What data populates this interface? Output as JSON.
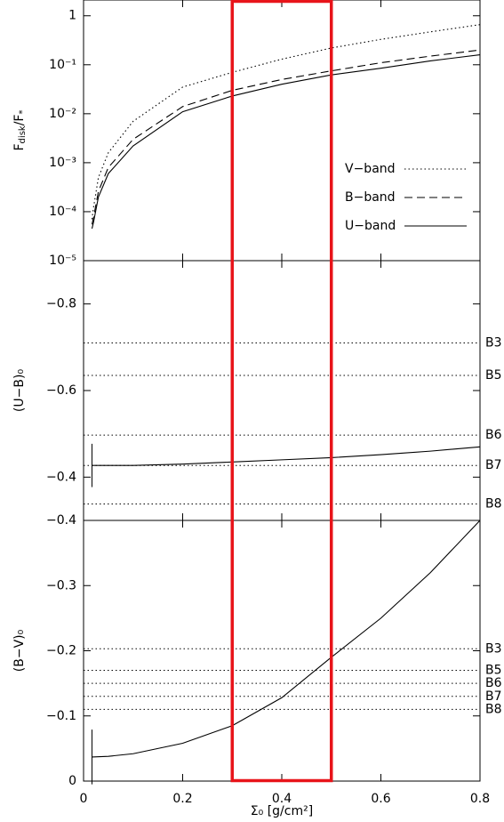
{
  "chart_data": [
    {
      "type": "line",
      "ylabel_parts": [
        "F",
        "disk",
        "/F",
        "*"
      ],
      "log_y": true,
      "xlim": [
        0,
        0.8
      ],
      "xticks": [
        0,
        0.2,
        0.4,
        0.6,
        0.8
      ],
      "ylim": [
        1e-05,
        2.1
      ],
      "yticks": [
        1,
        {
          "value": 0.1,
          "label": "10⁻¹"
        },
        {
          "value": 0.01,
          "label": "10⁻²"
        },
        {
          "value": 0.001,
          "label": "10⁻³"
        },
        {
          "value": 0.0001,
          "label": "10⁻⁴"
        },
        {
          "value": 1e-05,
          "label": "10⁻⁵"
        }
      ],
      "legend": "right",
      "x": [
        0.017,
        0.02,
        0.03,
        0.05,
        0.1,
        0.2,
        0.3,
        0.4,
        0.5,
        0.6,
        0.7,
        0.8
      ],
      "series": [
        {
          "name": "V−band",
          "color": "#000",
          "dash": "dotted",
          "values": [
            7e-05,
            0.00012,
            0.0005,
            0.0016,
            0.007,
            0.035,
            0.07,
            0.13,
            0.22,
            0.33,
            0.47,
            0.66
          ]
        },
        {
          "name": "B−band",
          "color": "#000",
          "dash": "dashed",
          "values": [
            5.5e-05,
            7.5e-05,
            0.00026,
            0.0008,
            0.003,
            0.014,
            0.03,
            0.05,
            0.075,
            0.11,
            0.15,
            0.2
          ]
        },
        {
          "name": "U−band",
          "color": "#000",
          "dash": "solid",
          "values": [
            4.5e-05,
            6e-05,
            0.0002,
            0.0006,
            0.0022,
            0.011,
            0.023,
            0.04,
            0.062,
            0.085,
            0.12,
            0.16
          ]
        }
      ]
    },
    {
      "type": "line",
      "ylabel": "(U−B)₀",
      "xlim": [
        0,
        0.8
      ],
      "xticks": [
        0,
        0.2,
        0.4,
        0.6,
        0.8
      ],
      "ylim": [
        -0.3,
        -0.9
      ],
      "yticks": [
        {
          "value": -0.8,
          "label": "−0.8"
        },
        {
          "value": -0.6,
          "label": "−0.6"
        },
        {
          "value": -0.4,
          "label": "−0.4"
        }
      ],
      "reference_lines": [
        {
          "label": "B3",
          "value": -0.71
        },
        {
          "label": "B5",
          "value": -0.635
        },
        {
          "label": "B6",
          "value": -0.497
        },
        {
          "label": "B7",
          "value": -0.427
        },
        {
          "label": "B8",
          "value": -0.338
        }
      ],
      "error_bar": {
        "x": 0.017,
        "value": -0.427,
        "error": 0.05
      },
      "x": [
        0.017,
        0.1,
        0.2,
        0.3,
        0.4,
        0.5,
        0.6,
        0.7,
        0.8
      ],
      "series": [
        {
          "color": "#000",
          "dash": "solid",
          "values": [
            -0.427,
            -0.427,
            -0.43,
            -0.435,
            -0.44,
            -0.445,
            -0.452,
            -0.46,
            -0.47
          ]
        }
      ]
    },
    {
      "type": "line",
      "ylabel": "(B−V)₀",
      "xlabel": "Σ₀ [g/cm²]",
      "xlim": [
        0,
        0.8
      ],
      "xticks": [
        0,
        0.2,
        0.4,
        0.6,
        0.8
      ],
      "ylim": [
        0,
        -0.4
      ],
      "yticks": [
        0,
        {
          "value": -0.1,
          "label": "−0.1"
        },
        {
          "value": -0.2,
          "label": "−0.2"
        },
        {
          "value": -0.3,
          "label": "−0.3"
        },
        {
          "value": -0.4,
          "label": "−0.4"
        }
      ],
      "reference_lines": [
        {
          "label": "B3",
          "value": -0.203
        },
        {
          "label": "B5",
          "value": -0.17
        },
        {
          "label": "B6",
          "value": -0.15
        },
        {
          "label": "B7",
          "value": -0.13
        },
        {
          "label": "B8",
          "value": -0.11
        }
      ],
      "error_bar": {
        "x": 0.017,
        "value": -0.037,
        "error": 0.042
      },
      "x": [
        0.017,
        0.05,
        0.1,
        0.2,
        0.3,
        0.4,
        0.5,
        0.6,
        0.7,
        0.8
      ],
      "series": [
        {
          "color": "#000",
          "dash": "solid",
          "values": [
            -0.037,
            -0.038,
            -0.042,
            -0.058,
            -0.085,
            -0.128,
            -0.19,
            -0.25,
            -0.32,
            -0.4
          ]
        }
      ]
    }
  ],
  "highlight": {
    "xlim": [
      0.3,
      0.5
    ],
    "color": "#e8141a"
  }
}
